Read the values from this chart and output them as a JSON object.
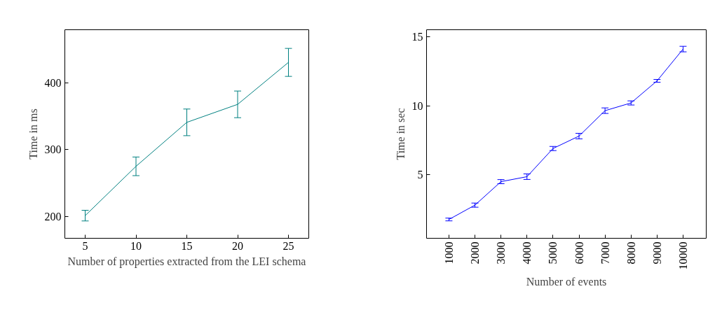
{
  "chart_data": [
    {
      "type": "line",
      "xlabel": "Number of properties extracted from the LEI schema",
      "ylabel": "Time in ms",
      "x": [
        5,
        10,
        15,
        20,
        25
      ],
      "series": [
        {
          "color": "#008080",
          "values": [
            201,
            275,
            341,
            368,
            431
          ],
          "errors": [
            8,
            14,
            20,
            20,
            21
          ]
        }
      ],
      "xlim": [
        3,
        27
      ],
      "ylim": [
        167,
        480
      ],
      "xticks": [
        5,
        10,
        15,
        20,
        25
      ],
      "yticks": [
        200,
        300,
        400
      ]
    },
    {
      "type": "line",
      "xlabel": "Number of events",
      "ylabel": "Time in sec",
      "x": [
        1000,
        2000,
        3000,
        4000,
        5000,
        6000,
        7000,
        8000,
        9000,
        10000
      ],
      "series": [
        {
          "color": "#0000ff",
          "values": [
            1.76,
            2.8,
            4.5,
            4.86,
            6.9,
            7.8,
            9.64,
            10.2,
            11.8,
            14.1
          ],
          "errors": [
            0.1,
            0.15,
            0.15,
            0.2,
            0.15,
            0.2,
            0.2,
            0.15,
            0.1,
            0.2
          ]
        }
      ],
      "xlim": [
        140,
        10890
      ],
      "ylim": [
        0.4,
        15.5
      ],
      "xticks": [
        1000,
        2000,
        3000,
        4000,
        5000,
        6000,
        7000,
        8000,
        9000,
        10000
      ],
      "yticks": [
        5,
        10,
        15
      ]
    }
  ]
}
